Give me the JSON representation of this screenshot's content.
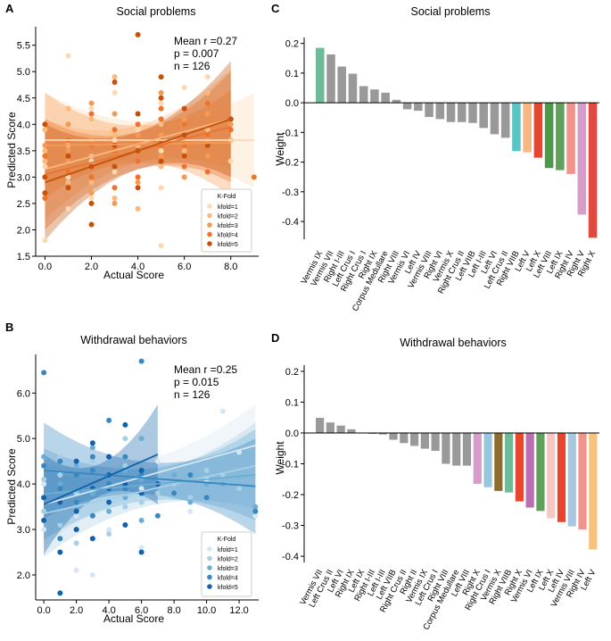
{
  "panels": {
    "A": {
      "letter": "A",
      "title": "Social problems",
      "stats": {
        "line1": "Mean r =0.27",
        "line2": "p = 0.007",
        "line3": "n = 126"
      },
      "xlabel": "Actual Score",
      "ylabel": "Predicted Score",
      "legend_title": "K-Fold",
      "xticks": [
        "0.0",
        "2.0",
        "4.0",
        "6.0",
        "8.0"
      ],
      "yticks": [
        "1.5",
        "2.0",
        "2.5",
        "3.0",
        "3.5",
        "4.0",
        "4.5",
        "5.0",
        "5.5"
      ]
    },
    "B": {
      "letter": "B",
      "title": "Withdrawal behaviors",
      "stats": {
        "line1": "Mean r =0.25",
        "line2": "p = 0.015",
        "line3": "n = 126"
      },
      "xlabel": "Actual Score",
      "ylabel": "Predicted Score",
      "legend_title": "K-Fold",
      "xticks": [
        "0.0",
        "2.0",
        "4.0",
        "6.0",
        "8.0",
        "10.0",
        "12.0"
      ],
      "yticks": [
        "2.0",
        "3.0",
        "4.0",
        "5.0",
        "6.0"
      ]
    },
    "C": {
      "letter": "C",
      "title": "Social problems",
      "ylabel": "Weight",
      "yticks": [
        "-0.4",
        "-0.3",
        "-0.2",
        "-0.1",
        "0.0",
        "0.1",
        "0.2"
      ]
    },
    "D": {
      "letter": "D",
      "title": "Withdrawal behaviors",
      "ylabel": "Weight",
      "yticks": [
        "-0.4",
        "-0.3",
        "-0.2",
        "-0.1",
        "0.0",
        "0.1",
        "0.2"
      ]
    }
  },
  "chart_data": [
    {
      "id": "A",
      "type": "scatter",
      "title": "Social problems",
      "xlabel": "Actual Score",
      "ylabel": "Predicted Score",
      "xlim": [
        -0.4,
        9.2
      ],
      "ylim": [
        1.5,
        5.85
      ],
      "legend": "bottom-right",
      "series": [
        {
          "name": "kfold=1",
          "color": "#fdd9b3",
          "x": [
            0,
            1,
            1,
            2,
            2,
            2,
            3,
            3,
            4,
            4,
            4,
            5,
            5,
            5,
            6,
            6,
            6,
            7,
            7,
            8,
            0,
            1,
            2,
            3,
            5
          ],
          "y": [
            1.8,
            2.4,
            3.0,
            3.3,
            3.6,
            2.6,
            3.1,
            3.7,
            3.3,
            3.9,
            4.2,
            1.7,
            3.5,
            4.4,
            3.4,
            4.0,
            4.7,
            3.8,
            4.9,
            3.3,
            3.2,
            5.3,
            4.3,
            4.6,
            2.8
          ],
          "fit": [
            [
              0,
              3.7
            ],
            [
              9,
              3.7
            ]
          ]
        },
        {
          "name": "kfold=2",
          "color": "#fbb97d",
          "x": [
            0,
            0,
            1,
            1,
            2,
            2,
            3,
            3,
            4,
            4,
            5,
            5,
            6,
            6,
            7,
            7,
            8,
            2,
            4,
            6,
            3,
            1,
            5,
            0,
            8
          ],
          "y": [
            3.3,
            3.9,
            3.6,
            4.3,
            2.9,
            3.4,
            2.6,
            3.8,
            3.0,
            3.6,
            3.2,
            4.0,
            3.5,
            4.3,
            3.9,
            4.6,
            3.7,
            4.1,
            2.4,
            3.0,
            4.9,
            2.9,
            3.6,
            3.5,
            4.1
          ],
          "fit": [
            [
              0,
              3.15
            ],
            [
              8,
              4.1
            ]
          ]
        },
        {
          "name": "kfold=3",
          "color": "#f59a54",
          "x": [
            0,
            1,
            1,
            2,
            2,
            3,
            3,
            4,
            4,
            5,
            5,
            6,
            6,
            7,
            7,
            8,
            1,
            3,
            5,
            2,
            4,
            6,
            0,
            7,
            3
          ],
          "y": [
            3.0,
            3.3,
            4.0,
            3.7,
            2.7,
            3.2,
            4.2,
            3.8,
            2.9,
            3.4,
            4.6,
            3.6,
            3.0,
            4.2,
            3.4,
            4.0,
            3.5,
            2.5,
            3.8,
            4.4,
            3.3,
            4.1,
            3.6,
            3.7,
            3.5
          ],
          "fit": [
            [
              0,
              3.6
            ],
            [
              8,
              3.65
            ]
          ]
        },
        {
          "name": "kfold=4",
          "color": "#ea7430",
          "x": [
            0,
            1,
            1,
            2,
            2,
            3,
            3,
            4,
            4,
            5,
            5,
            6,
            6,
            7,
            7,
            8,
            2,
            4,
            5,
            1,
            3,
            6,
            0,
            7,
            9
          ],
          "y": [
            2.6,
            3.1,
            3.7,
            3.0,
            4.2,
            3.5,
            2.8,
            4.0,
            3.3,
            3.6,
            4.3,
            3.2,
            4.0,
            3.8,
            4.4,
            3.9,
            3.6,
            3.0,
            4.1,
            2.8,
            3.9,
            3.6,
            3.4,
            3.1,
            3.0
          ],
          "fit": [
            [
              0,
              3.05
            ],
            [
              8,
              3.95
            ]
          ]
        },
        {
          "name": "kfold=5",
          "color": "#c4520e",
          "x": [
            0,
            0,
            1,
            2,
            2,
            3,
            3,
            4,
            4,
            4,
            5,
            5,
            6,
            6,
            7,
            2,
            3,
            5,
            1,
            6,
            4,
            0,
            8,
            5
          ],
          "y": [
            2.7,
            4.0,
            3.4,
            2.1,
            3.2,
            3.6,
            4.8,
            2.8,
            4.2,
            5.7,
            3.7,
            4.9,
            3.4,
            4.3,
            3.6,
            2.5,
            3.2,
            4.5,
            2.8,
            3.8,
            3.5,
            3.0,
            4.1,
            3.3
          ],
          "fit": [
            [
              0,
              2.9
            ],
            [
              8,
              4.1
            ]
          ]
        }
      ]
    },
    {
      "id": "B",
      "type": "scatter",
      "title": "Withdrawal behaviors",
      "xlabel": "Actual Score",
      "ylabel": "Predicted Score",
      "xlim": [
        -0.5,
        13.2
      ],
      "ylim": [
        1.45,
        6.85
      ],
      "legend": "bottom-right",
      "series": [
        {
          "name": "kfold=1",
          "color": "#d6e6f4",
          "x": [
            0,
            1,
            1,
            2,
            2,
            3,
            3,
            4,
            4,
            5,
            5,
            6,
            6,
            7,
            8,
            9,
            10,
            11,
            12,
            13,
            0,
            2,
            4
          ],
          "y": [
            3.0,
            2.5,
            3.6,
            2.1,
            3.3,
            2.0,
            3.8,
            3.0,
            4.2,
            3.1,
            4.6,
            2.6,
            3.9,
            4.5,
            3.8,
            3.4,
            4.1,
            5.6,
            4.7,
            3.3,
            4.0,
            4.4,
            3.6
          ],
          "fit": [
            [
              0,
              3.55
            ],
            [
              13,
              4.85
            ]
          ]
        },
        {
          "name": "kfold=2",
          "color": "#a9cfe5",
          "x": [
            0,
            1,
            1,
            2,
            2,
            3,
            3,
            4,
            4,
            5,
            5,
            6,
            6,
            7,
            8,
            9,
            10,
            11,
            12,
            1,
            3,
            5,
            0
          ],
          "y": [
            3.4,
            4.2,
            3.1,
            3.8,
            2.7,
            4.5,
            3.3,
            3.9,
            2.9,
            4.4,
            3.5,
            4.9,
            3.6,
            3.8,
            4.0,
            3.7,
            4.3,
            4.2,
            3.9,
            4.6,
            3.9,
            5.0,
            4.1
          ],
          "fit": [
            [
              0,
              3.35
            ],
            [
              13,
              4.4
            ]
          ]
        },
        {
          "name": "kfold=3",
          "color": "#6aaed6",
          "x": [
            0,
            0,
            1,
            1,
            2,
            2,
            3,
            3,
            4,
            4,
            5,
            5,
            6,
            6,
            7,
            8,
            9,
            10,
            11,
            13,
            2,
            4,
            6
          ],
          "y": [
            3.7,
            4.6,
            3.2,
            4.0,
            3.5,
            4.4,
            4.8,
            3.8,
            4.2,
            3.4,
            4.3,
            3.7,
            4.1,
            3.2,
            4.0,
            4.2,
            3.6,
            4.0,
            4.0,
            3.5,
            3.0,
            4.6,
            5.0
          ],
          "fit": [
            [
              0,
              3.78
            ],
            [
              13,
              4.2
            ]
          ]
        },
        {
          "name": "kfold=4",
          "color": "#3787c0",
          "x": [
            0,
            0,
            1,
            1,
            2,
            2,
            3,
            3,
            4,
            4,
            5,
            5,
            6,
            6,
            7,
            7,
            8,
            9,
            10,
            1,
            3,
            6,
            13
          ],
          "y": [
            6.45,
            4.4,
            3.9,
            2.8,
            4.2,
            3.6,
            4.6,
            3.3,
            4.0,
            5.4,
            3.9,
            4.6,
            4.2,
            6.7,
            4.0,
            3.3,
            3.8,
            4.2,
            3.7,
            4.5,
            4.3,
            3.8,
            3.4
          ],
          "fit": [
            [
              0,
              4.3
            ],
            [
              13,
              3.95
            ]
          ]
        },
        {
          "name": "kfold=5",
          "color": "#1361a9",
          "x": [
            0,
            1,
            1,
            2,
            2,
            3,
            3,
            4,
            4,
            5,
            5,
            6,
            6,
            7,
            1,
            2,
            3,
            4,
            5,
            6,
            0,
            4
          ],
          "y": [
            3.2,
            1.6,
            3.6,
            3.0,
            4.5,
            3.9,
            2.8,
            4.6,
            3.6,
            4.0,
            5.3,
            4.3,
            3.8,
            4.0,
            2.5,
            3.4,
            4.9,
            4.2,
            3.1,
            2.5,
            3.7,
            3.9
          ],
          "fit": [
            [
              0,
              3.55
            ],
            [
              7,
              4.65
            ]
          ]
        }
      ]
    },
    {
      "id": "C",
      "type": "bar",
      "title": "Social problems",
      "ylabel": "Weight",
      "ylim": [
        -0.46,
        0.22
      ],
      "categories": [
        "Vermis IX",
        "Vermis VII",
        "Right I-III",
        "Left Crus I",
        "Right Crus I",
        "Right IX",
        "Corpus Medullare",
        "Right VIII",
        "Vermis VI",
        "Left IV",
        "Vermis VIII",
        "Right VI",
        "Vermis X",
        "Right Crus II",
        "Left VIIB",
        "Left I-III",
        "Left VI",
        "Left Crus II",
        "Right VIIB",
        "Left V",
        "Left X",
        "Left VIII",
        "Left IX",
        "Right IV",
        "Right V",
        "Right X"
      ],
      "values": [
        0.185,
        0.163,
        0.122,
        0.098,
        0.056,
        0.045,
        0.034,
        0.01,
        -0.022,
        -0.027,
        -0.048,
        -0.055,
        -0.065,
        -0.065,
        -0.068,
        -0.085,
        -0.106,
        -0.118,
        -0.163,
        -0.167,
        -0.185,
        -0.22,
        -0.227,
        -0.24,
        -0.377,
        -0.455
      ],
      "colors": [
        "#6fba99",
        "#999999",
        "#999999",
        "#999999",
        "#999999",
        "#999999",
        "#999999",
        "#999999",
        "#999999",
        "#999999",
        "#999999",
        "#999999",
        "#999999",
        "#999999",
        "#999999",
        "#999999",
        "#999999",
        "#999999",
        "#5bc4c4",
        "#f6b782",
        "#e8452c",
        "#4c9a49",
        "#5fa05a",
        "#f0938b",
        "#d79dc9",
        "#e14b3f"
      ]
    },
    {
      "id": "D",
      "type": "bar",
      "title": "Withdrawal behaviors",
      "ylabel": "Weight",
      "ylim": [
        -0.42,
        0.22
      ],
      "categories": [
        "Vermis VII",
        "Left Crus II",
        "Left VI",
        "Right IX",
        "Left IX",
        "Right I-III",
        "Left I-III",
        "Left VIIB",
        "Right Crus II",
        "Right II",
        "Vermis IX",
        "Left Crus I",
        "Right VIII",
        "Corpus Medullare",
        "Left VIII",
        "Right X",
        "Right Crus I",
        "Vermis X",
        "Right VIIB",
        "Right X",
        "Vermis VI",
        "Left IX",
        "Left X",
        "Left IV",
        "Vermis VIII",
        "Right IV",
        "Left V"
      ],
      "values": [
        0.049,
        0.034,
        0.024,
        0.012,
        0.0,
        -0.003,
        -0.005,
        -0.022,
        -0.033,
        -0.042,
        -0.051,
        -0.058,
        -0.1,
        -0.106,
        -0.106,
        -0.165,
        -0.176,
        -0.188,
        -0.193,
        -0.222,
        -0.242,
        -0.253,
        -0.277,
        -0.289,
        -0.303,
        -0.313,
        -0.378
      ],
      "colors": [
        "#999999",
        "#999999",
        "#999999",
        "#999999",
        "#999999",
        "#999999",
        "#999999",
        "#999999",
        "#999999",
        "#999999",
        "#999999",
        "#999999",
        "#999999",
        "#999999",
        "#999999",
        "#d79dc9",
        "#98c6de",
        "#8c6d2f",
        "#6fba99",
        "#e8452c",
        "#b96fb2",
        "#5fa05a",
        "#f8c7c3",
        "#e8452c",
        "#a8c7e0",
        "#f0938b",
        "#f6c27e"
      ]
    }
  ]
}
